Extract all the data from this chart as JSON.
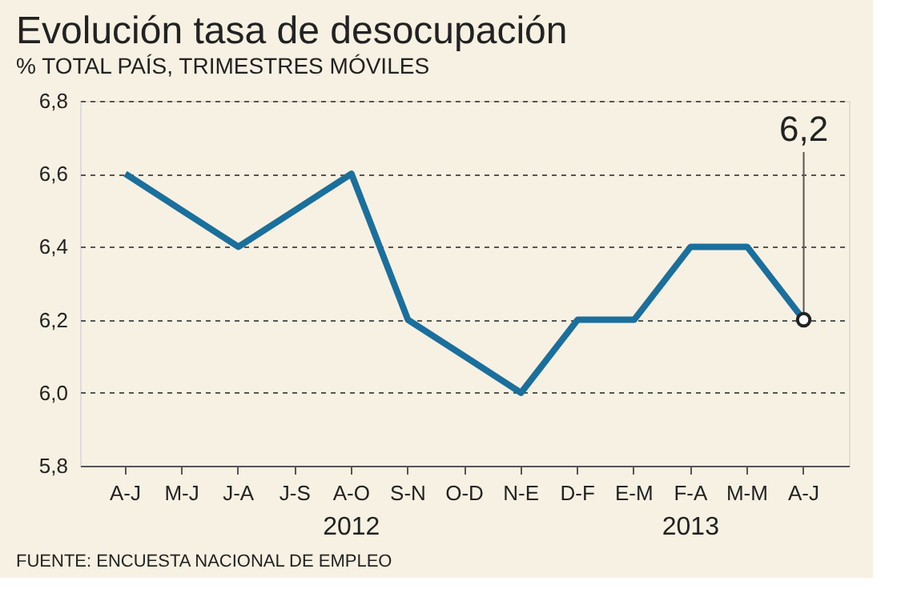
{
  "chart_data": {
    "type": "line",
    "title": "Evolución tasa de desocupación",
    "subtitle": "% TOTAL PAÍS, TRIMESTRES MÓVILES",
    "categories": [
      "A-J",
      "M-J",
      "J-A",
      "J-S",
      "A-O",
      "S-N",
      "O-D",
      "N-E",
      "D-F",
      "E-M",
      "F-A",
      "M-M",
      "A-J"
    ],
    "series": [
      {
        "color": "#1b6f9c",
        "values": [
          6.6,
          6.5,
          6.4,
          6.5,
          6.6,
          6.2,
          6.1,
          6.0,
          6.2,
          6.2,
          6.4,
          6.4,
          6.2
        ],
        "value_labels": [
          null,
          null,
          null,
          null,
          null,
          null,
          null,
          null,
          null,
          null,
          null,
          null,
          "6,2"
        ]
      }
    ],
    "ylim": [
      5.8,
      6.8
    ],
    "yticks": [
      {
        "value": 5.8,
        "label": "5,8"
      },
      {
        "value": 6.0,
        "label": "6,0"
      },
      {
        "value": 6.2,
        "label": "6,2"
      },
      {
        "value": 6.4,
        "label": "6,4"
      },
      {
        "value": 6.6,
        "label": "6,6"
      },
      {
        "value": 6.8,
        "label": "6,8"
      }
    ],
    "grid": "y",
    "line_style": "solid",
    "annotations": [
      "2012",
      "2013",
      "FUENTE: ENCUESTA NACIONAL DE EMPLEO"
    ]
  }
}
